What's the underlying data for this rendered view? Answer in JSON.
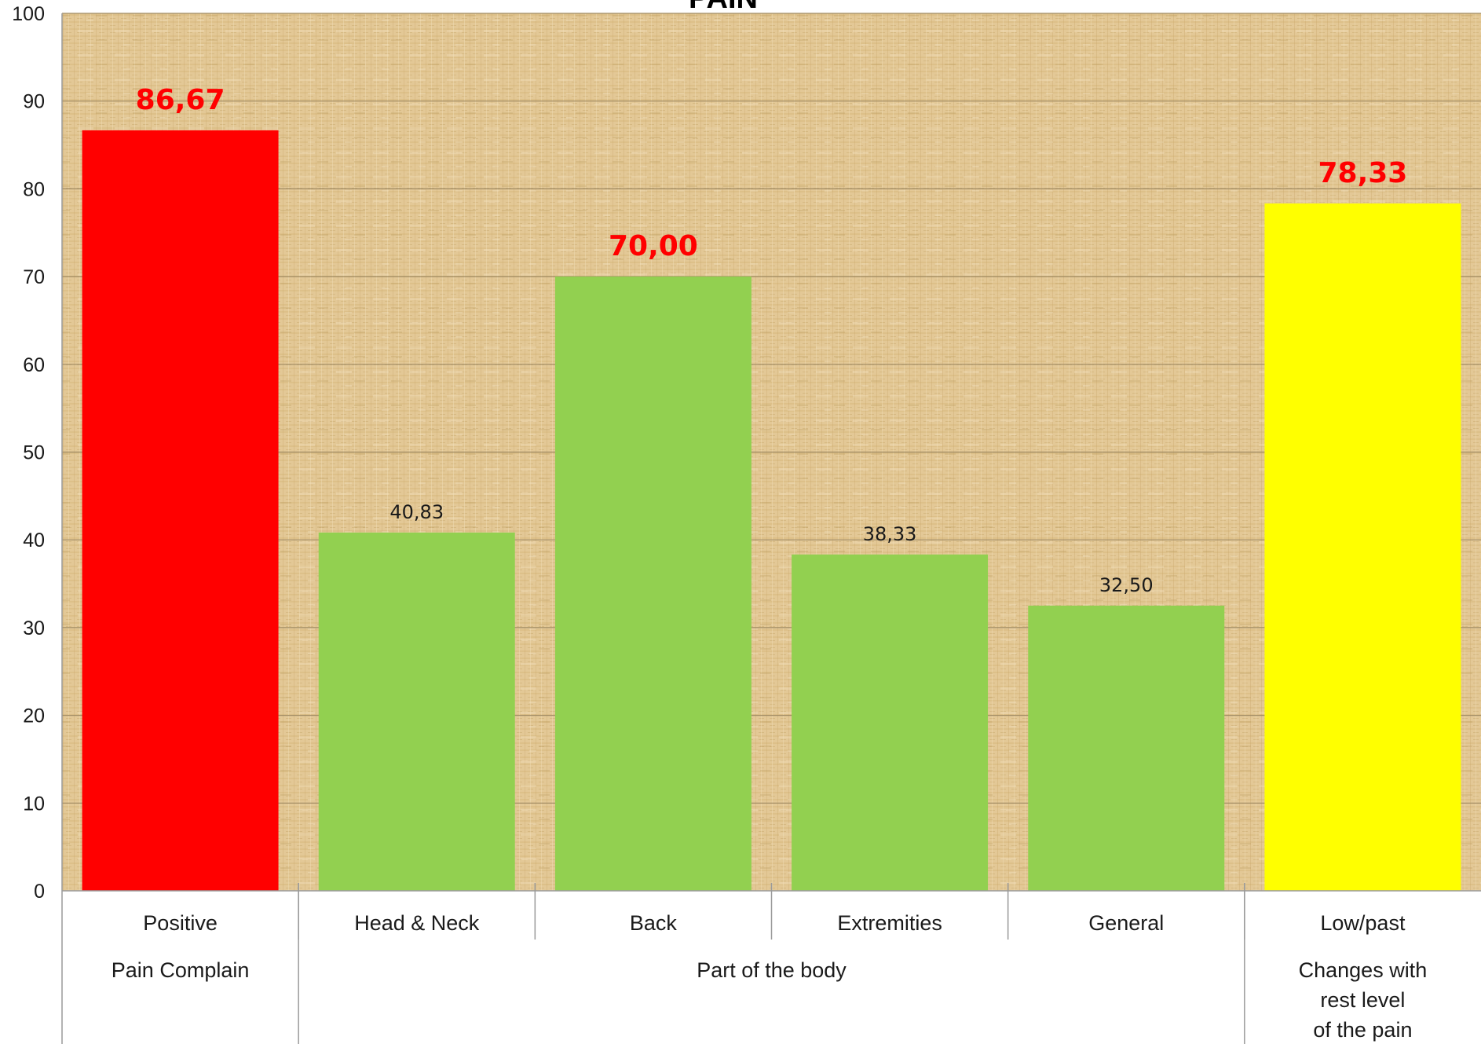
{
  "chart_data": {
    "type": "bar",
    "title": "PAIN",
    "xlabel": "",
    "ylabel": "",
    "ylim": [
      0,
      100
    ],
    "yticks": [
      "0",
      "10",
      "20",
      "30",
      "40",
      "50",
      "60",
      "70",
      "80",
      "90",
      "100"
    ],
    "grid": true,
    "categories": [
      "Positive",
      "Head & Neck",
      "Back",
      "Extremities",
      "General",
      "Low/past"
    ],
    "groups": [
      {
        "label": "Pain Complain",
        "categories": [
          "Positive"
        ]
      },
      {
        "label": "Part of the body",
        "categories": [
          "Head & Neck",
          "Back",
          "Extremities",
          "General"
        ]
      },
      {
        "label": "Changes with rest level of the pain",
        "lines": [
          "Changes with",
          "rest level",
          "of the pain"
        ],
        "categories": [
          "Low/past"
        ]
      }
    ],
    "values": [
      86.67,
      40.83,
      70.0,
      38.33,
      32.5,
      78.33
    ],
    "value_labels": [
      "86,67",
      "40,83",
      "70,00",
      "38,33",
      "32,50",
      "78,33"
    ],
    "highlighted_labels": [
      true,
      false,
      true,
      false,
      false,
      true
    ],
    "bar_colors": [
      "#ff0000",
      "#92d050",
      "#92d050",
      "#92d050",
      "#92d050",
      "#ffff00"
    ],
    "highlight_label_color": "#ff0000",
    "normal_label_color": "#1a1a1a"
  }
}
